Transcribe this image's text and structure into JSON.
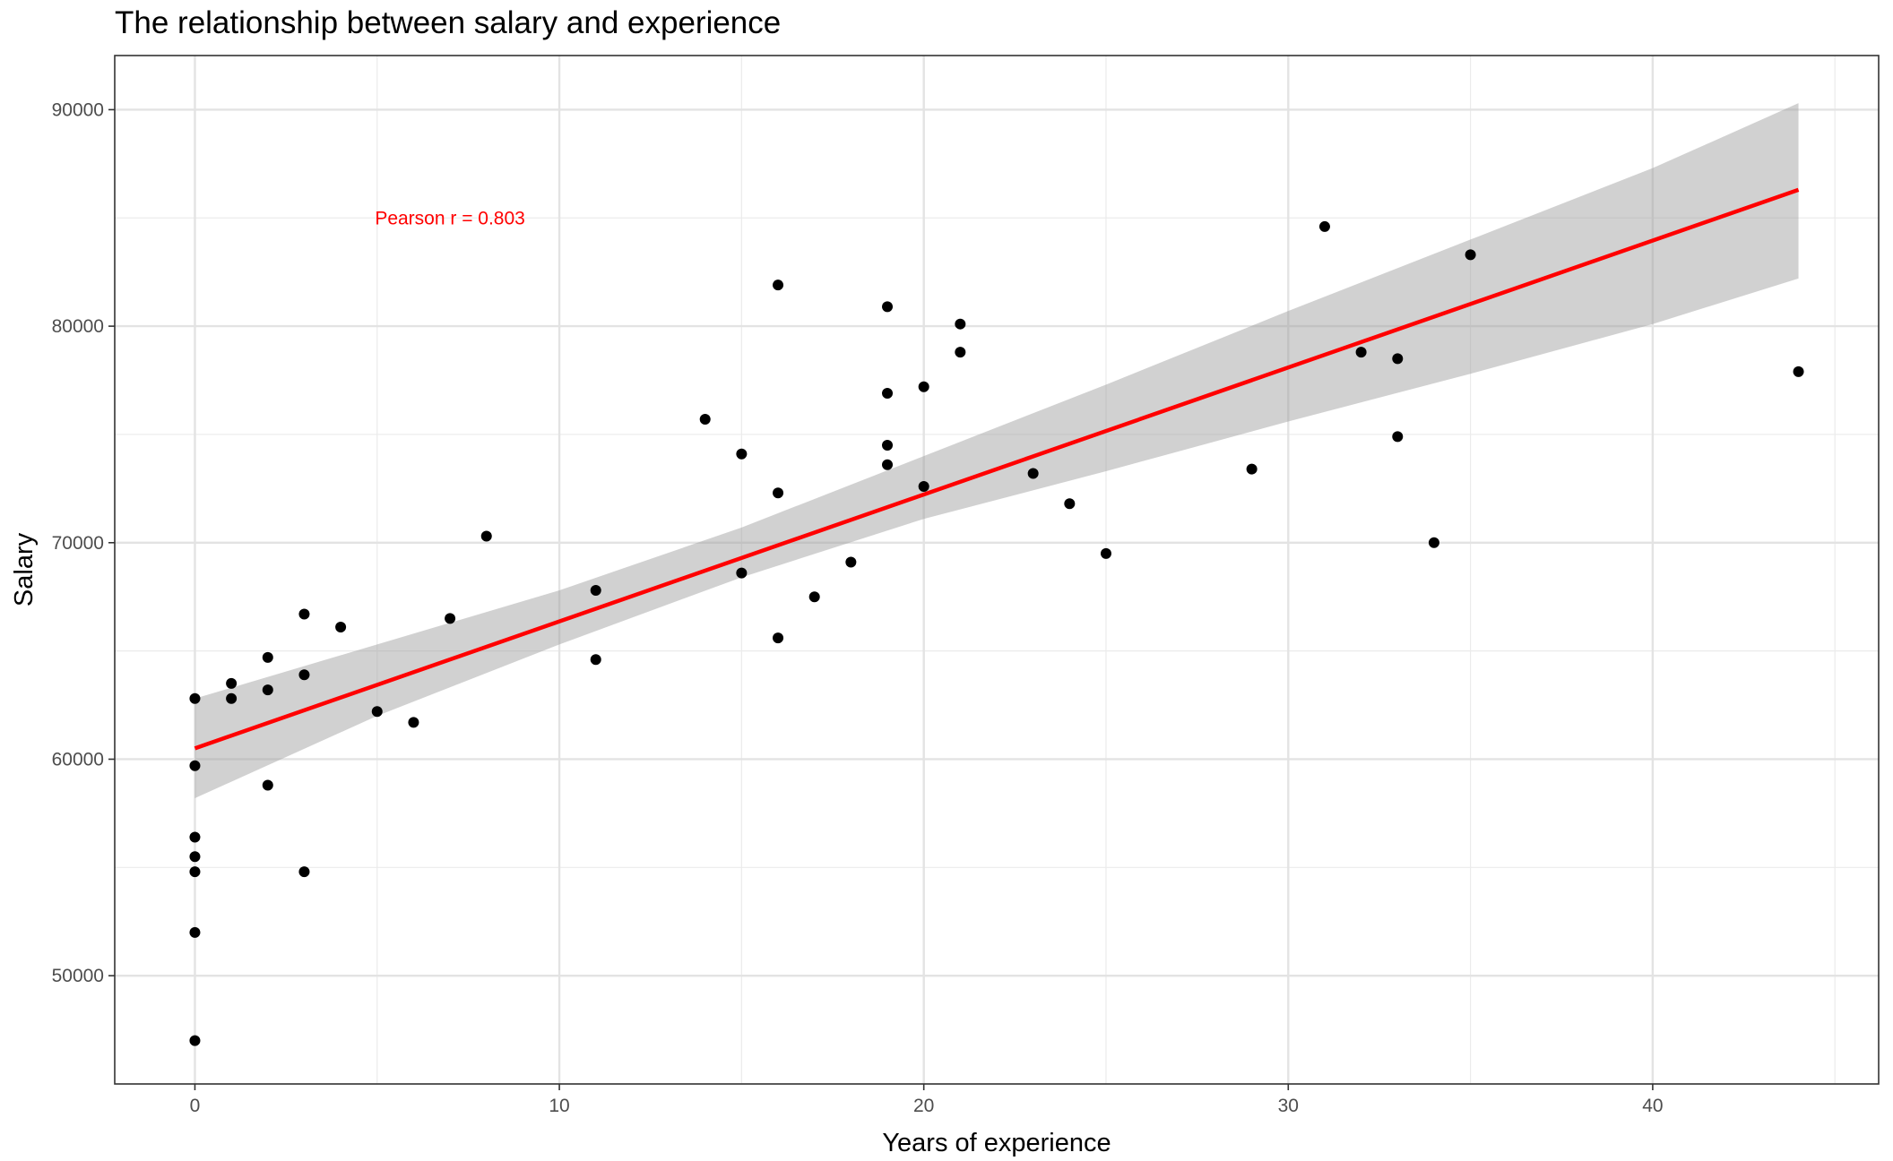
{
  "chart_data": {
    "type": "scatter",
    "title": "The relationship between salary and experience",
    "xlabel": "Years of experience",
    "ylabel": "Salary",
    "xlim": [
      -2.2,
      46.2
    ],
    "ylim": [
      45000,
      92500
    ],
    "x_ticks": [
      0,
      10,
      20,
      30,
      40
    ],
    "y_ticks": [
      50000,
      60000,
      70000,
      80000,
      90000
    ],
    "grid": true,
    "annotation": {
      "text": "Pearson r =  0.803",
      "x": 7,
      "y": 85000,
      "color": "#ff0000"
    },
    "regression": {
      "x_start": 0,
      "y_start": 60500,
      "x_end": 44,
      "y_end": 86300,
      "color": "#ff0000",
      "confidence_band": [
        {
          "x": 0,
          "lower": 58200,
          "upper": 62800
        },
        {
          "x": 5,
          "lower": 62000,
          "upper": 65300
        },
        {
          "x": 10,
          "lower": 65300,
          "upper": 67800
        },
        {
          "x": 15,
          "lower": 68400,
          "upper": 70700
        },
        {
          "x": 20,
          "lower": 71100,
          "upper": 74000
        },
        {
          "x": 25,
          "lower": 73300,
          "upper": 77300
        },
        {
          "x": 30,
          "lower": 75600,
          "upper": 80700
        },
        {
          "x": 35,
          "lower": 77800,
          "upper": 84000
        },
        {
          "x": 40,
          "lower": 80100,
          "upper": 87300
        },
        {
          "x": 44,
          "lower": 82200,
          "upper": 90300
        }
      ]
    },
    "series": [
      {
        "points": [
          {
            "x": 0,
            "y": 47000
          },
          {
            "x": 0,
            "y": 52000
          },
          {
            "x": 0,
            "y": 54800
          },
          {
            "x": 0,
            "y": 55500
          },
          {
            "x": 0,
            "y": 56400
          },
          {
            "x": 0,
            "y": 59700
          },
          {
            "x": 0,
            "y": 62800
          },
          {
            "x": 1,
            "y": 62800
          },
          {
            "x": 1,
            "y": 63500
          },
          {
            "x": 2,
            "y": 58800
          },
          {
            "x": 2,
            "y": 63200
          },
          {
            "x": 2,
            "y": 64700
          },
          {
            "x": 3,
            "y": 54800
          },
          {
            "x": 3,
            "y": 63900
          },
          {
            "x": 3,
            "y": 66700
          },
          {
            "x": 4,
            "y": 66100
          },
          {
            "x": 5,
            "y": 62200
          },
          {
            "x": 6,
            "y": 61700
          },
          {
            "x": 7,
            "y": 66500
          },
          {
            "x": 8,
            "y": 70300
          },
          {
            "x": 11,
            "y": 64600
          },
          {
            "x": 11,
            "y": 67800
          },
          {
            "x": 14,
            "y": 75700
          },
          {
            "x": 15,
            "y": 68600
          },
          {
            "x": 15,
            "y": 74100
          },
          {
            "x": 16,
            "y": 65600
          },
          {
            "x": 16,
            "y": 72300
          },
          {
            "x": 16,
            "y": 81900
          },
          {
            "x": 17,
            "y": 67500
          },
          {
            "x": 18,
            "y": 69100
          },
          {
            "x": 19,
            "y": 73600
          },
          {
            "x": 19,
            "y": 74500
          },
          {
            "x": 19,
            "y": 76900
          },
          {
            "x": 19,
            "y": 80900
          },
          {
            "x": 20,
            "y": 72600
          },
          {
            "x": 20,
            "y": 77200
          },
          {
            "x": 21,
            "y": 78800
          },
          {
            "x": 21,
            "y": 80100
          },
          {
            "x": 23,
            "y": 73200
          },
          {
            "x": 24,
            "y": 71800
          },
          {
            "x": 25,
            "y": 69500
          },
          {
            "x": 29,
            "y": 73400
          },
          {
            "x": 31,
            "y": 84600
          },
          {
            "x": 32,
            "y": 78800
          },
          {
            "x": 33,
            "y": 74900
          },
          {
            "x": 33,
            "y": 78500
          },
          {
            "x": 34,
            "y": 70000
          },
          {
            "x": 35,
            "y": 83300
          },
          {
            "x": 44,
            "y": 77900
          }
        ]
      }
    ]
  }
}
